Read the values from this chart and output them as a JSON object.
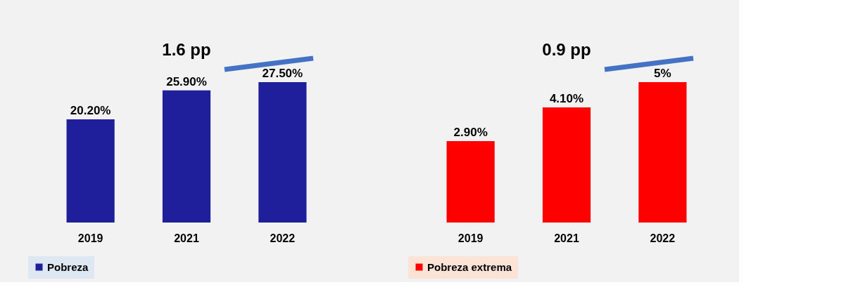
{
  "chart_data": [
    {
      "type": "bar",
      "categories": [
        "2019",
        "2021",
        "2022"
      ],
      "series": [
        {
          "name": "Pobreza",
          "color": "#1f1f9b",
          "values": [
            20.2,
            25.9,
            27.5
          ],
          "value_labels": [
            "20.20%",
            "25.90%",
            "27.50%"
          ]
        }
      ],
      "annotations": [
        "1.6 pp"
      ],
      "legend": "bottom",
      "grid": false
    },
    {
      "type": "bar",
      "categories": [
        "2019",
        "2021",
        "2022"
      ],
      "series": [
        {
          "name": "Pobreza extrema",
          "color": "#ff0000",
          "values": [
            2.9,
            4.1,
            5
          ],
          "value_labels": [
            "2.90%",
            "4.10%",
            "5%"
          ]
        }
      ],
      "annotations": [
        "0.9 pp"
      ],
      "legend": "bottom",
      "grid": false
    }
  ]
}
